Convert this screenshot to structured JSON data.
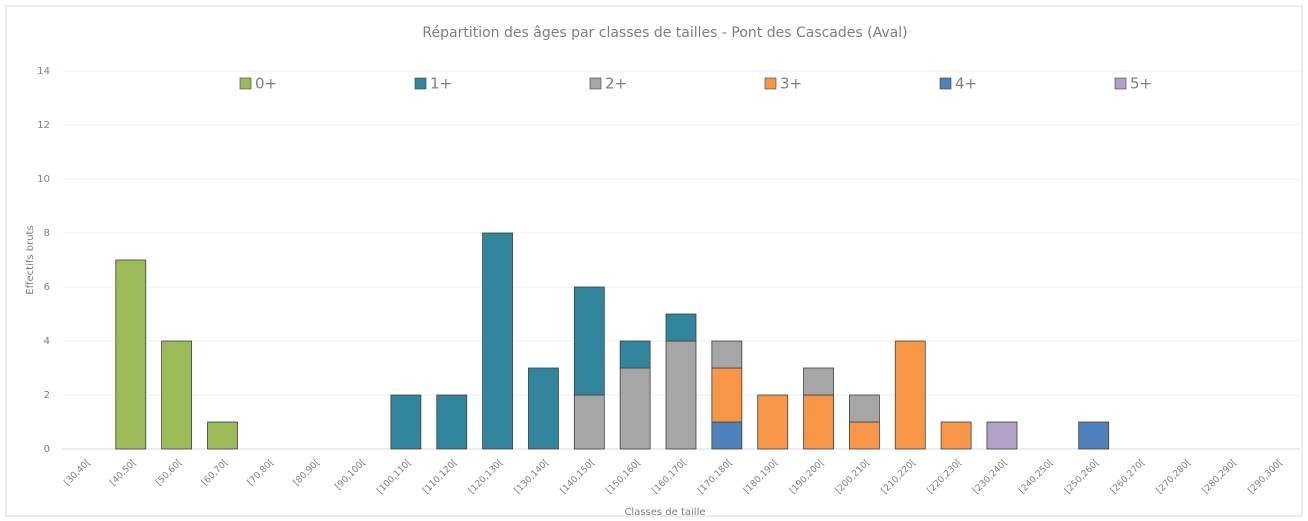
{
  "chart_data": {
    "type": "stacked_bar",
    "title": "Répartition des âges par classes de tailles - Pont des Cascades (Aval)",
    "x_label": "Classes de taille",
    "y_label": "Effectifs bruts",
    "categories": [
      "[30,40[",
      "[40,50[",
      "[50,60[",
      "[60,70[",
      "[70,80[",
      "[80,90[",
      "[90,100[",
      "[100,110[",
      "[110,120[",
      "[120,130[",
      "[130,140[",
      "[140,150[",
      "[150,160[",
      "[160,170[",
      "[170,180[",
      "[180,190[",
      "[190,200[",
      "[200,210[",
      "[210,220[",
      "[220,230[",
      "[230,240[",
      "[240,250[",
      "[250,260[",
      "[260,270[",
      "[270,280[",
      "[280,290[",
      "[290,300["
    ],
    "series": [
      {
        "name": "0+",
        "color": "#9bbb59",
        "values": [
          0,
          7,
          4,
          1,
          0,
          0,
          0,
          0,
          0,
          0,
          0,
          0,
          0,
          0,
          0,
          0,
          0,
          0,
          0,
          0,
          0,
          0,
          0,
          0,
          0,
          0,
          0
        ]
      },
      {
        "name": "1+",
        "color": "#31859c",
        "values": [
          0,
          0,
          0,
          0,
          0,
          0,
          0,
          2,
          2,
          8,
          3,
          4,
          1,
          1,
          0,
          0,
          0,
          0,
          0,
          0,
          0,
          0,
          0,
          0,
          0,
          0,
          0
        ]
      },
      {
        "name": "2+",
        "color": "#a6a6a6",
        "values": [
          0,
          0,
          0,
          0,
          0,
          0,
          0,
          0,
          0,
          0,
          0,
          2,
          3,
          4,
          1,
          0,
          1,
          1,
          0,
          0,
          0,
          0,
          0,
          0,
          0,
          0,
          0
        ]
      },
      {
        "name": "3+",
        "color": "#f79646",
        "values": [
          0,
          0,
          0,
          0,
          0,
          0,
          0,
          0,
          0,
          0,
          0,
          0,
          0,
          0,
          2,
          2,
          2,
          1,
          4,
          1,
          0,
          0,
          0,
          0,
          0,
          0,
          0
        ]
      },
      {
        "name": "4+",
        "color": "#4f81bd",
        "values": [
          0,
          0,
          0,
          0,
          0,
          0,
          0,
          0,
          0,
          0,
          0,
          0,
          0,
          0,
          1,
          0,
          0,
          0,
          0,
          0,
          0,
          0,
          1,
          0,
          0,
          0,
          0
        ]
      },
      {
        "name": "5+",
        "color": "#b3a2c7",
        "values": [
          0,
          0,
          0,
          0,
          0,
          0,
          0,
          0,
          0,
          0,
          0,
          0,
          0,
          0,
          0,
          0,
          0,
          0,
          0,
          0,
          1,
          0,
          0,
          0,
          0,
          0,
          0
        ]
      }
    ],
    "ylim": [
      0,
      14
    ],
    "yticks": [
      0,
      2,
      4,
      6,
      8,
      10,
      12,
      14
    ],
    "grid": true,
    "legend": "top"
  }
}
